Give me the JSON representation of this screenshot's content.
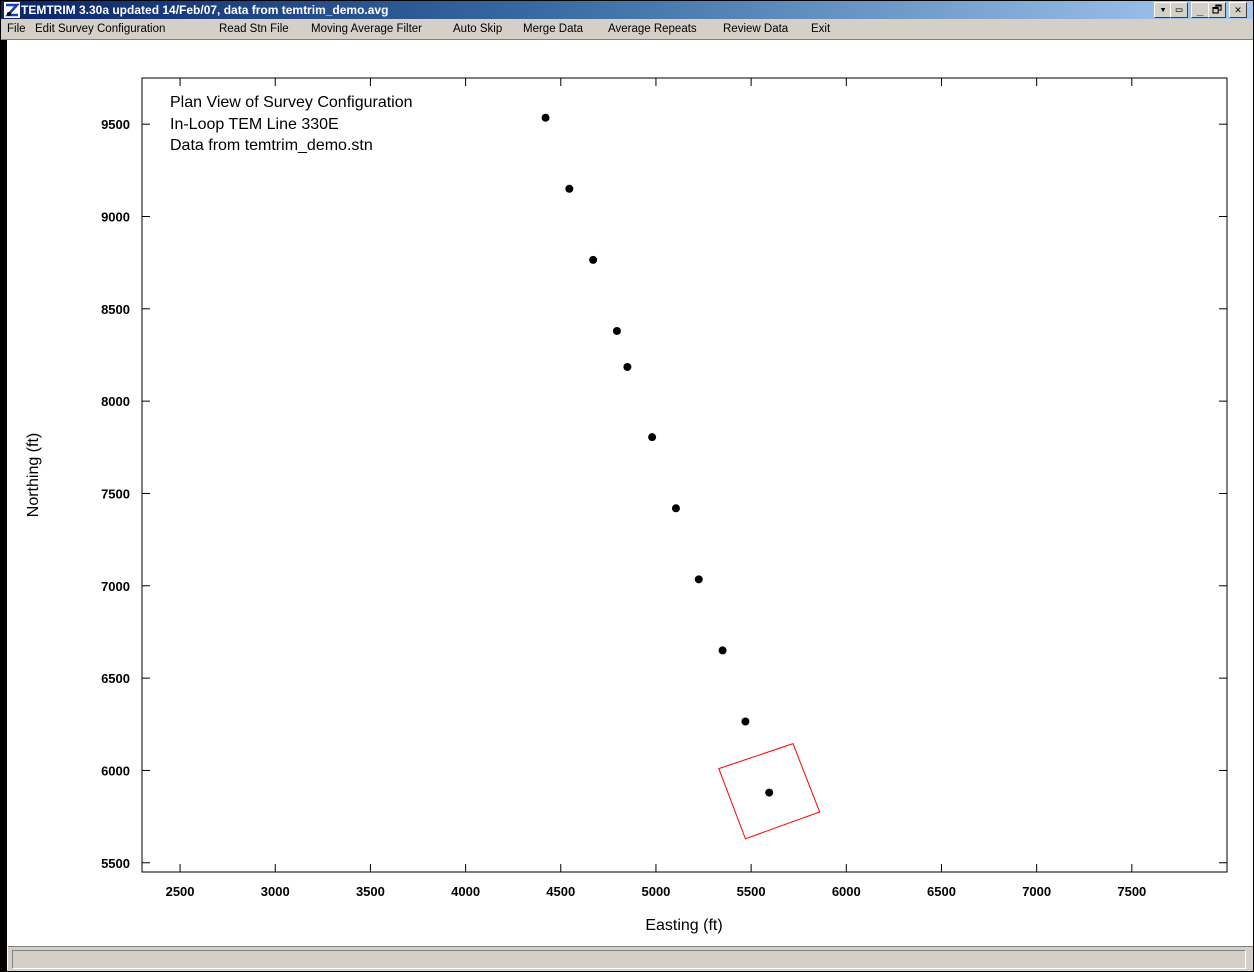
{
  "window": {
    "title": "TEMTRIM 3.30a updated 14/Feb/07, data from temtrim_demo.avg",
    "controls": {
      "help_down": "▾",
      "restore_inner": "▭",
      "minimize": "_",
      "restore": "🗗",
      "close": "✕"
    }
  },
  "menu": [
    "File",
    "Edit Survey Configuration",
    "Read Stn File",
    "Moving Average Filter",
    "Auto Skip",
    "Merge Data",
    "Average Repeats",
    "Review Data",
    "Exit"
  ],
  "plot": {
    "annotations": [
      "Plan View of Survey Configuration",
      "In-Loop TEM Line 330E",
      "Data from temtrim_demo.stn"
    ]
  },
  "chart_data": {
    "type": "scatter",
    "xlabel": "Easting (ft)",
    "ylabel": "Northing (ft)",
    "xlim": [
      2300,
      8000
    ],
    "ylim": [
      5450,
      9750
    ],
    "xticks": [
      2500,
      3000,
      3500,
      4000,
      4500,
      5000,
      5500,
      6000,
      6500,
      7000,
      7500
    ],
    "yticks": [
      5500,
      6000,
      6500,
      7000,
      7500,
      8000,
      8500,
      9000,
      9500
    ],
    "stations": [
      {
        "x": 4420,
        "y": 9535
      },
      {
        "x": 4545,
        "y": 9150
      },
      {
        "x": 4670,
        "y": 8765
      },
      {
        "x": 4795,
        "y": 8380
      },
      {
        "x": 4850,
        "y": 8185
      },
      {
        "x": 4980,
        "y": 7805
      },
      {
        "x": 5105,
        "y": 7420
      },
      {
        "x": 5225,
        "y": 7035
      },
      {
        "x": 5350,
        "y": 6650
      },
      {
        "x": 5470,
        "y": 6265
      },
      {
        "x": 5595,
        "y": 5880
      }
    ],
    "loop": {
      "color": "#ff0000",
      "corners": [
        {
          "x": 5330,
          "y": 6010
        },
        {
          "x": 5720,
          "y": 6145
        },
        {
          "x": 5860,
          "y": 5775
        },
        {
          "x": 5470,
          "y": 5630
        }
      ]
    },
    "marker_color": "#000000",
    "grid": false,
    "legend": "none"
  },
  "status": {
    "text": ""
  }
}
